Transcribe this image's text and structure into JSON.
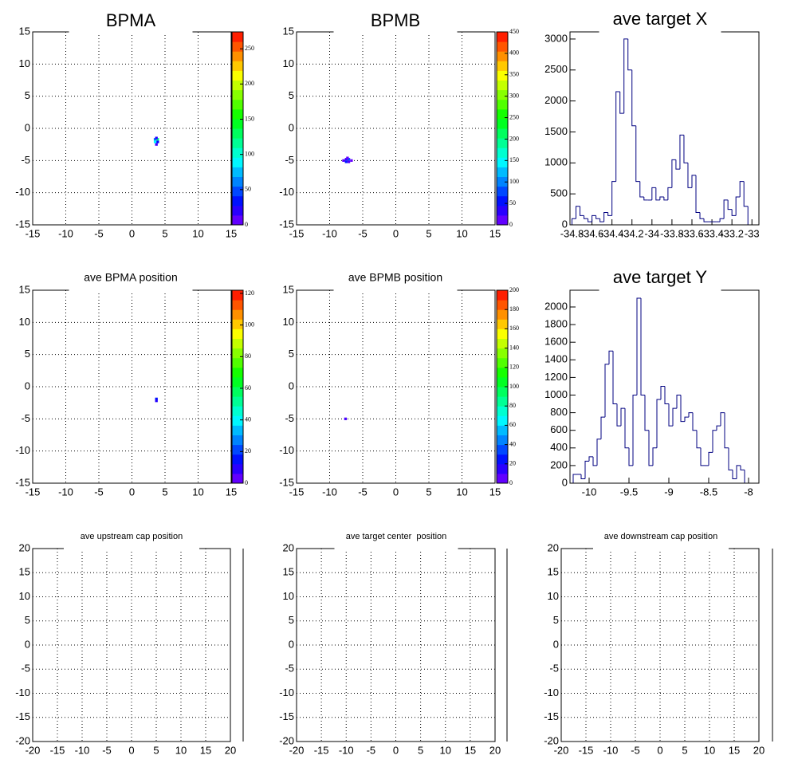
{
  "chart_data": [
    {
      "type": "heatmap",
      "title": "BPMA",
      "xlim": [
        -15,
        15
      ],
      "ylim": [
        -15,
        15
      ],
      "xticks": [
        -15,
        -10,
        -5,
        0,
        5,
        10,
        15
      ],
      "yticks": [
        -15,
        -10,
        -5,
        0,
        5,
        10,
        15
      ],
      "grid": true,
      "zlim": [
        0,
        274
      ],
      "zticks": [
        0,
        50,
        100,
        150,
        200,
        250
      ],
      "x": [
        3.5,
        3.9,
        3.5,
        3.9,
        3.7,
        3.7
      ],
      "y": [
        -1.7,
        -1.7,
        -2.1,
        -2.1,
        -1.5,
        -2.5
      ],
      "values": [
        60,
        120,
        90,
        30,
        20,
        15
      ]
    },
    {
      "type": "heatmap",
      "title": "BPMB",
      "xlim": [
        -15,
        15
      ],
      "ylim": [
        -15,
        15
      ],
      "xticks": [
        -15,
        -10,
        -5,
        0,
        5,
        10,
        15
      ],
      "yticks": [
        -15,
        -10,
        -5,
        0,
        5,
        10,
        15
      ],
      "grid": true,
      "zlim": [
        0,
        450
      ],
      "zticks": [
        0,
        50,
        100,
        150,
        200,
        250,
        300,
        350,
        400,
        450
      ],
      "x": [
        -7.5,
        -7.1,
        -7.5,
        -7.1,
        -7.3,
        -7.9,
        -6.7
      ],
      "y": [
        -4.8,
        -4.8,
        -5.2,
        -5.2,
        -4.6,
        -5,
        -5
      ],
      "values": [
        30,
        80,
        60,
        20,
        10,
        15,
        10
      ]
    },
    {
      "type": "histogram",
      "title": "ave target X",
      "color": "#000080",
      "xlim": [
        -34.82,
        -32.93
      ],
      "ylim": [
        0,
        3115
      ],
      "xticks": [
        -34.8,
        -34.6,
        -34.4,
        -34.2,
        -34,
        -33.8,
        -33.6,
        -33.4,
        -33.2,
        -33
      ],
      "yticks": [
        0,
        500,
        1000,
        1500,
        2000,
        2500,
        3000
      ],
      "bins": [
        -34.8,
        -34.76,
        -34.72,
        -34.68,
        -34.64,
        -34.6,
        -34.56,
        -34.52,
        -34.48,
        -34.44,
        -34.4,
        -34.36,
        -34.32,
        -34.28,
        -34.24,
        -34.2,
        -34.16,
        -34.12,
        -34.08,
        -34.04,
        -34,
        -33.96,
        -33.92,
        -33.88,
        -33.84,
        -33.8,
        -33.76,
        -33.72,
        -33.68,
        -33.64,
        -33.6,
        -33.56,
        -33.52,
        -33.48,
        -33.44,
        -33.4,
        -33.36,
        -33.32,
        -33.28,
        -33.24,
        -33.2,
        -33.16,
        -33.12,
        -33.08,
        -33.04
      ],
      "values": [
        100,
        300,
        150,
        100,
        50,
        150,
        100,
        50,
        200,
        150,
        700,
        2150,
        1800,
        3000,
        2500,
        1600,
        700,
        450,
        400,
        400,
        600,
        400,
        450,
        400,
        600,
        1050,
        900,
        1450,
        1000,
        600,
        800,
        200,
        100,
        50,
        50,
        50,
        50,
        100,
        400,
        250,
        150,
        450,
        700,
        300
      ]
    },
    {
      "type": "heatmap",
      "title": "ave BPMA position",
      "xlim": [
        -15,
        15
      ],
      "ylim": [
        -15,
        15
      ],
      "xticks": [
        -15,
        -10,
        -5,
        0,
        5,
        10,
        15
      ],
      "yticks": [
        -15,
        -10,
        -5,
        0,
        5,
        10,
        15
      ],
      "grid": true,
      "zlim": [
        0,
        122
      ],
      "zticks": [
        0,
        20,
        40,
        60,
        80,
        100,
        120
      ],
      "x": [
        3.7,
        3.7
      ],
      "y": [
        -1.9,
        -2.2
      ],
      "values": [
        15,
        10
      ]
    },
    {
      "type": "heatmap",
      "title": "ave BPMB position",
      "xlim": [
        -15,
        15
      ],
      "ylim": [
        -15,
        15
      ],
      "xticks": [
        -15,
        -10,
        -5,
        0,
        5,
        10,
        15
      ],
      "yticks": [
        -15,
        -10,
        -5,
        0,
        5,
        10,
        15
      ],
      "grid": true,
      "zlim": [
        0,
        200
      ],
      "zticks": [
        0,
        20,
        40,
        60,
        80,
        100,
        120,
        140,
        160,
        180,
        200
      ],
      "x": [
        -7.6
      ],
      "y": [
        -5
      ],
      "values": [
        10
      ]
    },
    {
      "type": "histogram",
      "title": "ave target Y",
      "color": "#000080",
      "xlim": [
        -10.24,
        -7.87
      ],
      "ylim": [
        0,
        2190
      ],
      "xticks": [
        -10,
        -9.5,
        -9,
        -8.5,
        -8
      ],
      "yticks": [
        0,
        200,
        400,
        600,
        800,
        1000,
        1200,
        1400,
        1600,
        1800,
        2000
      ],
      "bins": [
        -10.2,
        -10.15,
        -10.1,
        -10.05,
        -10,
        -9.95,
        -9.9,
        -9.85,
        -9.8,
        -9.75,
        -9.7,
        -9.65,
        -9.6,
        -9.55,
        -9.5,
        -9.45,
        -9.4,
        -9.35,
        -9.3,
        -9.25,
        -9.2,
        -9.15,
        -9.1,
        -9.05,
        -9,
        -8.95,
        -8.9,
        -8.85,
        -8.8,
        -8.75,
        -8.7,
        -8.65,
        -8.6,
        -8.55,
        -8.5,
        -8.45,
        -8.4,
        -8.35,
        -8.3,
        -8.25,
        -8.2,
        -8.15,
        -8.1,
        -8.05
      ],
      "values": [
        100,
        100,
        50,
        250,
        300,
        200,
        500,
        750,
        1350,
        1500,
        900,
        650,
        850,
        400,
        200,
        1000,
        2100,
        1000,
        600,
        200,
        400,
        950,
        1100,
        900,
        650,
        850,
        1000,
        700,
        750,
        800,
        600,
        400,
        200,
        200,
        350,
        600,
        650,
        800,
        400,
        150,
        50,
        200,
        150
      ]
    },
    {
      "type": "heatmap",
      "title": "ave upstream cap position",
      "xlim": [
        -20,
        20
      ],
      "ylim": [
        -20,
        20
      ],
      "xticks": [
        -20,
        -15,
        -10,
        -5,
        0,
        5,
        10,
        15,
        20
      ],
      "yticks": [
        -20,
        -15,
        -10,
        -5,
        0,
        5,
        10,
        15,
        20
      ],
      "grid": true
    },
    {
      "type": "heatmap",
      "title": "ave target center  position",
      "xlim": [
        -20,
        20
      ],
      "ylim": [
        -20,
        20
      ],
      "xticks": [
        -20,
        -15,
        -10,
        -5,
        0,
        5,
        10,
        15,
        20
      ],
      "yticks": [
        -20,
        -15,
        -10,
        -5,
        0,
        5,
        10,
        15,
        20
      ],
      "grid": true
    },
    {
      "type": "heatmap",
      "title": "ave downstream cap position",
      "xlim": [
        -20,
        20
      ],
      "ylim": [
        -20,
        20
      ],
      "xticks": [
        -20,
        -15,
        -10,
        -5,
        0,
        5,
        10,
        15,
        20
      ],
      "yticks": [
        -20,
        -15,
        -10,
        -5,
        0,
        5,
        10,
        15,
        20
      ],
      "grid": true
    }
  ]
}
